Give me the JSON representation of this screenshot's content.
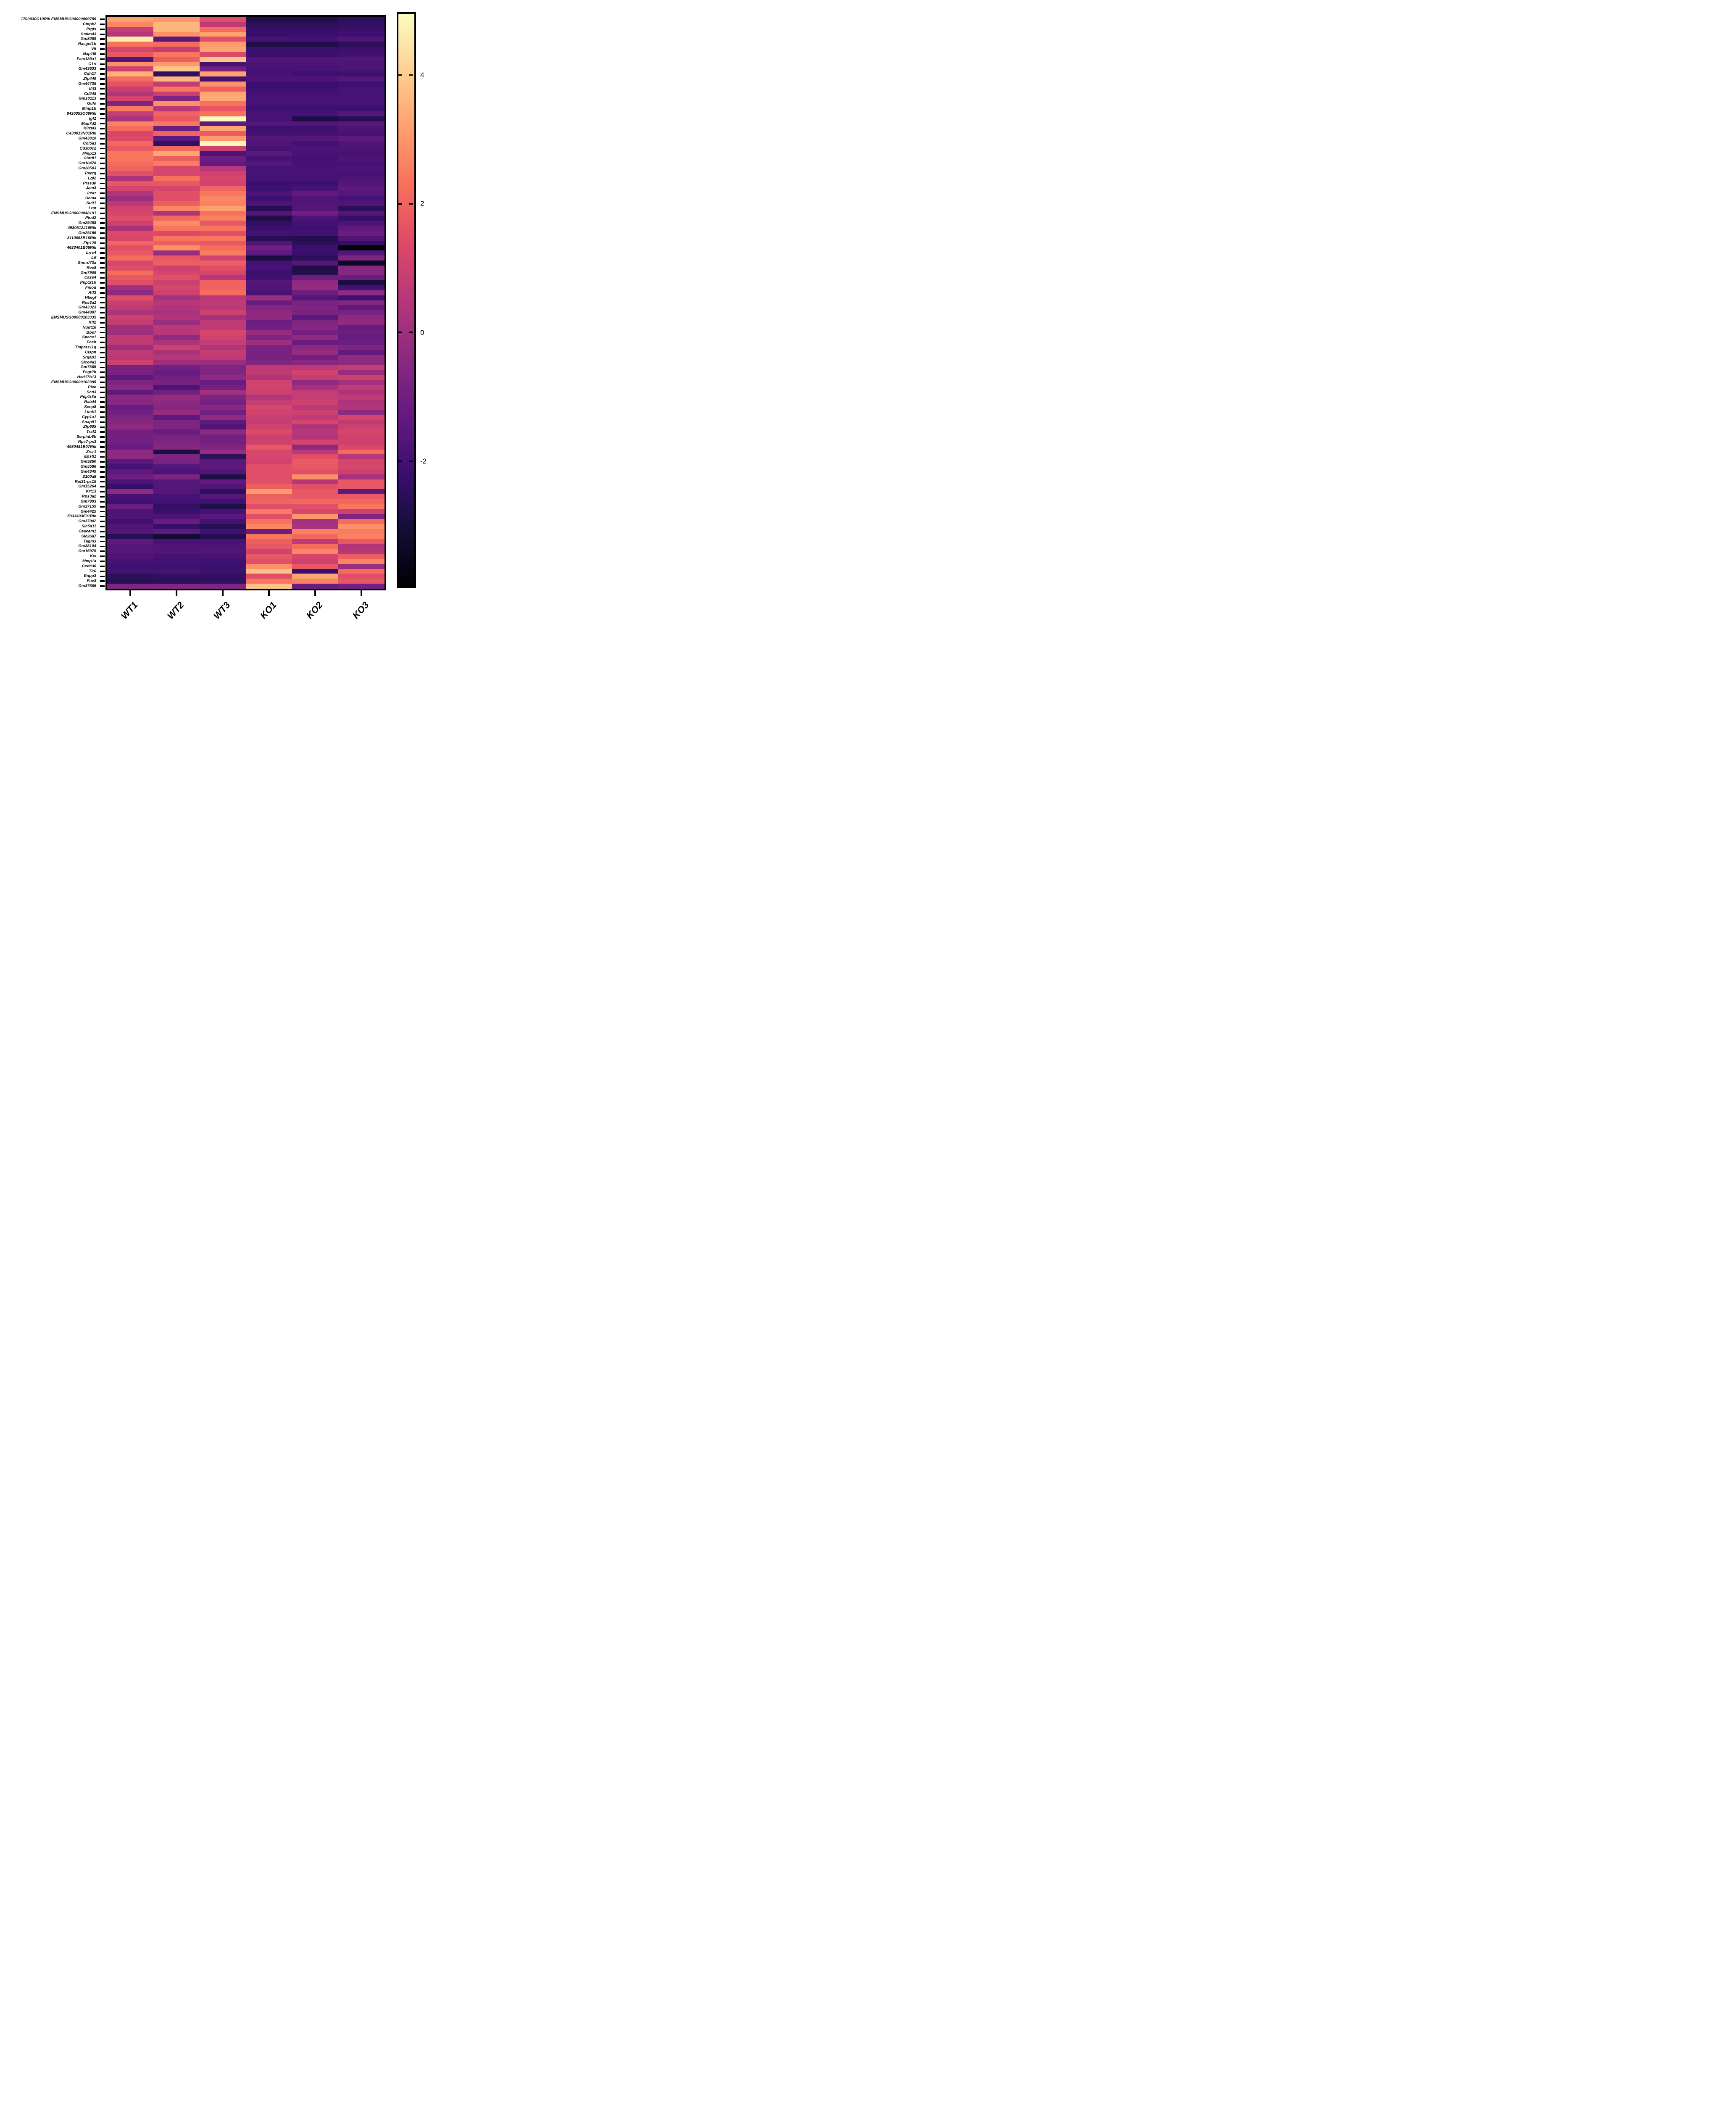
{
  "figure": {
    "background": "#ffffff",
    "axis_color": "#000000"
  },
  "chart_data": {
    "type": "heatmap",
    "title": "",
    "xlabel": "",
    "ylabel": "",
    "legend_position": "right-colorbar",
    "grid": false,
    "columns": [
      "WT1",
      "WT2",
      "WT3",
      "KO1",
      "KO2",
      "KO3"
    ],
    "rows": [
      "1700030C10Rik ENSMUSG00000099759",
      "Cmpk2",
      "Ptgis",
      "Smim43",
      "Gm8089",
      "Rasgef1b",
      "Vit",
      "Nap1l5",
      "Fam189a1",
      "C1rl",
      "Gm43633",
      "Cdh17",
      "Zfp449",
      "Gm44735",
      "Ifit3",
      "Cd248",
      "Gm10113",
      "Gulo",
      "Mmp1b",
      "9430053O09Rik",
      "Igf1",
      "Map7d2",
      "Kirrel3",
      "C430019N01Rik",
      "Gm43010",
      "Col5a3",
      "Cd300c2",
      "Mmp13",
      "Chrdl1",
      "Gm10478",
      "Gm28503",
      "Pacrg",
      "Lgi2",
      "Prss30",
      "Jam3",
      "Insrr",
      "Ucma",
      "Sulf1",
      "Lrat",
      "ENSMUSG00000048191",
      "Plod2",
      "Gm29488",
      "4930512J16Rik",
      "Gm29156",
      "3110053B16Rik",
      "Zfp125",
      "4633401B06Rik",
      "Lrrc4",
      "Lif",
      "Snord73a",
      "Rec8",
      "Gm7909",
      "Cass4",
      "Ppp1r1b",
      "Fmod",
      "Atf3",
      "Hbegf",
      "Rps3a1",
      "Gm43323",
      "Gm44907",
      "ENSMUSG00000103335",
      "Klf2",
      "Nudt16",
      "Bbs7",
      "Specc1",
      "Fosb",
      "Tmprss11g",
      "Clspn",
      "Srgap1",
      "Slco4a1",
      "Gm7665",
      "Fcgr2b",
      "Hsd17b13",
      "ENSMUSG00000102395",
      "Plek",
      "Scd3",
      "Ppp1r3d",
      "Rab44",
      "Senp8",
      "Limk1",
      "Cyp1a1",
      "Snap91",
      "Zfp605",
      "Traf1",
      "Serpinb6b",
      "Rps7-ps3",
      "4930481B07Rik",
      "Zrsr1",
      "Epsti1",
      "Gm9260",
      "Gm5586",
      "Gm4349",
      "S100a8",
      "Rpl31-ps15",
      "Gm15264",
      "Krt13",
      "Rps3a2",
      "Gm7993",
      "Gm37159",
      "Gm4425",
      "5033403F01Rik",
      "Gm37902",
      "Slc5a11",
      "Ceacam1",
      "Slc26a7",
      "Tagln3",
      "Gm38104",
      "Gm15979",
      "Kel",
      "Mmp1a",
      "Ccdc30",
      "Tlr6",
      "Enpp3",
      "Pax3",
      "Gm37686"
    ],
    "values": [
      [
        3.2,
        3.0,
        1.5,
        -2.7,
        -2.7,
        -2.5
      ],
      [
        2.7,
        3.6,
        0.7,
        -2.5,
        -2.5,
        -2.4
      ],
      [
        0.8,
        3.6,
        2.2,
        -2.3,
        -2.3,
        -2.2
      ],
      [
        0.5,
        2.9,
        3.2,
        -2.3,
        -2.2,
        -2.1
      ],
      [
        4.6,
        -1.5,
        1.5,
        -1.9,
        -1.9,
        -1.7
      ],
      [
        2.3,
        2.2,
        3.1,
        -2.8,
        -2.8,
        -2.5
      ],
      [
        1.2,
        0.8,
        3.3,
        -2.2,
        -2.2,
        -2.2
      ],
      [
        1.7,
        2.4,
        1.4,
        -2.2,
        -2.2,
        -2.0
      ],
      [
        -1.7,
        1.9,
        3.9,
        -1.7,
        -1.7,
        -1.7
      ],
      [
        2.9,
        3.1,
        -1.9,
        -1.8,
        -1.8,
        -1.8
      ],
      [
        1.0,
        3.9,
        -1.0,
        -1.9,
        -1.9,
        -1.8
      ],
      [
        3.5,
        -2.4,
        3.2,
        -1.9,
        -2.1,
        -2.1
      ],
      [
        2.2,
        3.6,
        -2.0,
        -1.8,
        -1.8,
        -1.6
      ],
      [
        1.6,
        0.8,
        2.9,
        -2.2,
        -2.2,
        -2.1
      ],
      [
        0.9,
        2.4,
        1.9,
        -2.1,
        -2.1,
        -1.9
      ],
      [
        0.4,
        0.9,
        3.3,
        -1.9,
        -1.9,
        -1.9
      ],
      [
        1.2,
        -0.7,
        3.4,
        -1.9,
        -1.9,
        -1.9
      ],
      [
        -0.7,
        2.9,
        2.3,
        -1.9,
        -1.9,
        -1.9
      ],
      [
        2.5,
        0.5,
        1.7,
        -2.1,
        -2.1,
        -2.1
      ],
      [
        0.8,
        2.0,
        2.3,
        -1.9,
        -1.9,
        -1.6
      ],
      [
        0.2,
        1.7,
        4.9,
        -1.9,
        -2.8,
        -2.6
      ],
      [
        2.6,
        2.4,
        -1.4,
        -1.6,
        -1.6,
        -1.5
      ],
      [
        2.2,
        -1.1,
        3.3,
        -2.1,
        -2.1,
        -1.8
      ],
      [
        1.2,
        2.0,
        1.8,
        -2.0,
        -2.0,
        -1.9
      ],
      [
        1.4,
        -1.4,
        3.1,
        -1.6,
        -1.6,
        -1.4
      ],
      [
        2.1,
        -2.4,
        4.8,
        -1.7,
        -2.0,
        -1.7
      ],
      [
        1.7,
        2.1,
        1.0,
        -1.9,
        -1.8,
        -1.8
      ],
      [
        2.4,
        3.3,
        -1.8,
        -1.5,
        -1.9,
        -1.9
      ],
      [
        2.4,
        1.9,
        -1.1,
        -1.9,
        -2.0,
        -1.8
      ],
      [
        2.2,
        2.5,
        -1.3,
        -1.6,
        -1.9,
        -1.9
      ],
      [
        2.0,
        1.2,
        0.5,
        -1.9,
        -1.9,
        -1.8
      ],
      [
        1.5,
        1.2,
        1.1,
        -1.9,
        -1.9,
        -1.9
      ],
      [
        0.3,
        2.3,
        1.2,
        -1.9,
        -1.9,
        -1.8
      ],
      [
        1.7,
        1.7,
        1.1,
        -2.2,
        -2.2,
        -1.6
      ],
      [
        1.2,
        1.2,
        2.0,
        -2.1,
        -1.9,
        -1.4
      ],
      [
        0.4,
        1.5,
        2.4,
        -1.8,
        -1.3,
        -1.6
      ],
      [
        -0.1,
        1.5,
        2.7,
        -2.1,
        -1.7,
        -1.9
      ],
      [
        0.6,
        1.9,
        2.6,
        -1.8,
        -1.7,
        -1.7
      ],
      [
        1.1,
        2.7,
        3.2,
        -2.6,
        -1.6,
        -2.5
      ],
      [
        1.2,
        0.3,
        2.3,
        -1.6,
        -1.0,
        -1.6
      ],
      [
        1.5,
        2.1,
        2.6,
        -2.8,
        -1.8,
        -2.3
      ],
      [
        1.0,
        2.8,
        1.7,
        -2.4,
        -2.0,
        -1.8
      ],
      [
        0.2,
        2.4,
        2.4,
        -2.2,
        -2.1,
        -1.4
      ],
      [
        1.4,
        1.4,
        1.5,
        -2.0,
        -2.0,
        -1.1
      ],
      [
        1.2,
        2.4,
        2.4,
        -2.6,
        -2.7,
        -1.7
      ],
      [
        2.0,
        1.9,
        1.7,
        -1.7,
        -2.5,
        -2.4
      ],
      [
        1.5,
        2.9,
        2.2,
        -1.0,
        -2.2,
        -3.8
      ],
      [
        1.7,
        -0.1,
        2.5,
        -1.4,
        -2.2,
        -1.6
      ],
      [
        2.2,
        1.7,
        1.1,
        -2.9,
        -2.5,
        -0.7
      ],
      [
        1.2,
        1.9,
        1.9,
        -2.0,
        -1.6,
        -3.4
      ],
      [
        1.5,
        1.0,
        1.5,
        -1.9,
        -2.8,
        -0.5
      ],
      [
        2.2,
        1.2,
        1.2,
        -2.2,
        -2.7,
        -0.5
      ],
      [
        1.7,
        1.5,
        0.5,
        -2.1,
        -1.1,
        -1.1
      ],
      [
        1.5,
        1.0,
        2.0,
        -1.6,
        -0.3,
        -2.9
      ],
      [
        0.1,
        1.2,
        2.0,
        -1.7,
        -0.2,
        -2.0
      ],
      [
        -0.4,
        1.0,
        2.2,
        -1.9,
        -1.1,
        -0.3
      ],
      [
        1.5,
        0.1,
        0.5,
        -0.1,
        -1.6,
        -2.1
      ],
      [
        0.9,
        0.5,
        0.7,
        -1.2,
        -0.8,
        -0.5
      ],
      [
        0.7,
        0.4,
        0.6,
        -0.6,
        -0.7,
        -1.4
      ],
      [
        0.3,
        0.2,
        1.0,
        -0.4,
        -0.8,
        -0.8
      ],
      [
        1.0,
        0.4,
        0.1,
        -0.3,
        -1.5,
        -0.4
      ],
      [
        0.8,
        -0.1,
        0.7,
        -1.1,
        -0.7,
        -0.3
      ],
      [
        0.0,
        0.6,
        0.7,
        -1.0,
        -0.5,
        -1.2
      ],
      [
        0.0,
        0.5,
        1.2,
        -0.2,
        -0.9,
        -1.1
      ],
      [
        0.7,
        -0.3,
        1.1,
        -0.7,
        -0.3,
        -1.2
      ],
      [
        0.7,
        0.3,
        0.8,
        0.0,
        -1.2,
        -1.1
      ],
      [
        0.0,
        1.0,
        0.4,
        -0.8,
        -0.4,
        -0.7
      ],
      [
        0.7,
        0.2,
        0.8,
        -0.8,
        -0.2,
        -1.3
      ],
      [
        0.6,
        0.5,
        0.7,
        -0.8,
        -0.9,
        -0.3
      ],
      [
        1.0,
        0.0,
        -0.1,
        -0.7,
        -0.5,
        -0.4
      ],
      [
        -0.8,
        -1.0,
        -0.7,
        0.7,
        0.6,
        0.8
      ],
      [
        -0.8,
        -1.2,
        -0.7,
        0.7,
        1.1,
        -0.2
      ],
      [
        -1.4,
        -1.0,
        -0.3,
        0.4,
        0.8,
        1.0
      ],
      [
        -0.7,
        -0.8,
        -1.2,
        1.1,
        -0.3,
        0.1
      ],
      [
        -0.4,
        -1.8,
        -0.9,
        1.1,
        0.1,
        0.7
      ],
      [
        -1.4,
        -1.0,
        0.1,
        1.0,
        0.8,
        0.3
      ],
      [
        -0.4,
        -0.2,
        -0.7,
        0.4,
        0.8,
        0.7
      ],
      [
        -0.5,
        -0.4,
        -0.9,
        0.8,
        1.0,
        0.3
      ],
      [
        -1.2,
        -0.5,
        -0.5,
        1.2,
        0.6,
        0.4
      ],
      [
        -1.0,
        -0.2,
        -1.0,
        1.1,
        1.0,
        -0.4
      ],
      [
        -0.7,
        -1.4,
        -0.3,
        0.9,
        0.7,
        1.2
      ],
      [
        -0.5,
        -0.7,
        -1.4,
        0.8,
        1.2,
        0.7
      ],
      [
        -0.3,
        -0.7,
        -1.7,
        1.1,
        0.3,
        1.0
      ],
      [
        -0.9,
        -1.2,
        -0.4,
        1.4,
        0.5,
        1.2
      ],
      [
        -1.0,
        -0.8,
        -1.0,
        1.0,
        0.4,
        1.1
      ],
      [
        -1.0,
        -0.7,
        -0.9,
        1.0,
        1.2,
        1.0
      ],
      [
        -1.2,
        -0.5,
        -0.7,
        1.7,
        -0.3,
        1.3
      ],
      [
        -0.3,
        -2.9,
        -0.2,
        1.2,
        0.6,
        2.2
      ],
      [
        -0.4,
        -0.7,
        -2.5,
        1.2,
        1.5,
        0.5
      ],
      [
        -1.5,
        -0.8,
        -1.5,
        1.1,
        1.8,
        1.2
      ],
      [
        -1.9,
        -1.6,
        -1.4,
        1.5,
        1.7,
        1.2
      ],
      [
        -1.4,
        -1.8,
        -1.6,
        1.5,
        1.5,
        1.0
      ],
      [
        -1.1,
        -0.7,
        -2.8,
        1.5,
        2.9,
        0.2
      ],
      [
        -1.8,
        -1.6,
        -1.3,
        1.5,
        0.5,
        1.7
      ],
      [
        -2.3,
        -1.6,
        -1.7,
        1.9,
        1.5,
        1.7
      ],
      [
        -0.3,
        -1.6,
        -2.5,
        3.1,
        1.7,
        -1.4
      ],
      [
        -1.9,
        -1.9,
        -1.6,
        1.9,
        1.7,
        1.8
      ],
      [
        -2.1,
        -2.0,
        -2.1,
        2.0,
        2.1,
        2.1
      ],
      [
        -1.1,
        -2.4,
        -2.8,
        1.5,
        1.5,
        2.4
      ],
      [
        -1.8,
        -2.2,
        -1.9,
        2.5,
        1.2,
        1.0
      ],
      [
        -1.7,
        -1.8,
        -1.5,
        1.5,
        3.0,
        -0.7
      ],
      [
        -2.1,
        -1.2,
        -2.0,
        2.3,
        0.1,
        2.2
      ],
      [
        -1.7,
        -2.3,
        -2.6,
        2.7,
        0.2,
        2.9
      ],
      [
        -1.6,
        -1.4,
        -2.1,
        -1.1,
        2.6,
        2.5
      ],
      [
        -2.6,
        -3.1,
        -2.7,
        2.4,
        2.1,
        2.6
      ],
      [
        -1.4,
        -1.9,
        -1.9,
        1.9,
        0.7,
        1.7
      ],
      [
        -1.6,
        -1.7,
        -1.8,
        1.7,
        2.2,
        0.4
      ],
      [
        -1.6,
        -1.7,
        -1.7,
        1.1,
        2.7,
        0.5
      ],
      [
        -1.7,
        -1.9,
        -1.9,
        1.7,
        1.2,
        1.9
      ],
      [
        -1.9,
        -2.0,
        -2.1,
        1.5,
        1.0,
        2.7
      ],
      [
        -2.1,
        -2.1,
        -2.2,
        2.9,
        1.7,
        -0.1
      ],
      [
        -2.0,
        -1.9,
        -2.1,
        3.8,
        -2.2,
        2.2
      ],
      [
        -2.5,
        -2.4,
        -2.4,
        1.5,
        3.3,
        1.5
      ],
      [
        -2.6,
        -2.5,
        -2.4,
        2.4,
        2.6,
        1.7
      ],
      [
        -0.7,
        -0.6,
        -0.7,
        3.8,
        -1.2,
        -1.0
      ]
    ],
    "vmin": -3.95,
    "vmax": 4.95,
    "colorbar": {
      "ticks": [
        4,
        2,
        0,
        -2
      ]
    },
    "colormap": {
      "name": "magma",
      "stops": [
        [
          0.0,
          "#000004"
        ],
        [
          0.1,
          "#140e36"
        ],
        [
          0.2,
          "#3b0f70"
        ],
        [
          0.3,
          "#641a80"
        ],
        [
          0.4,
          "#8c2981"
        ],
        [
          0.5,
          "#b73779"
        ],
        [
          0.6,
          "#de4968"
        ],
        [
          0.7,
          "#f7705c"
        ],
        [
          0.8,
          "#fe9f6d"
        ],
        [
          0.9,
          "#fecf92"
        ],
        [
          1.0,
          "#fcfdbf"
        ]
      ]
    }
  }
}
